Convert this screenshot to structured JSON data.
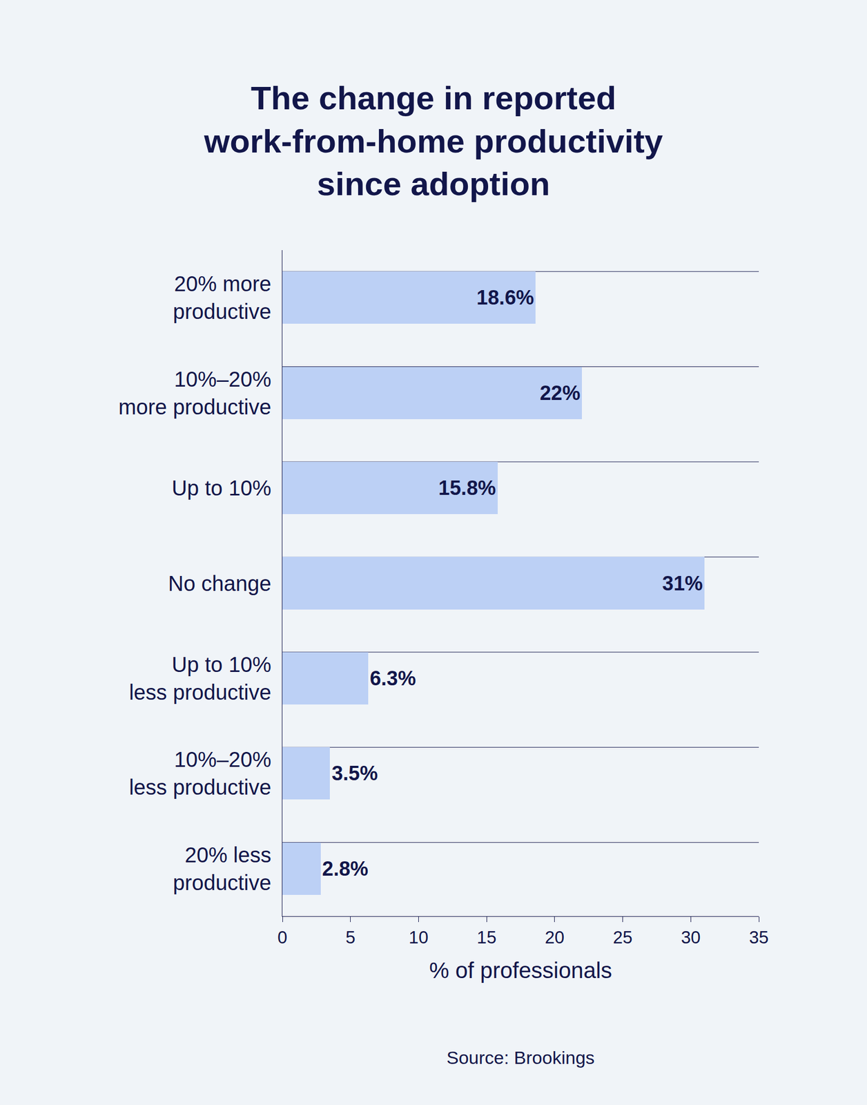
{
  "chart_data": {
    "type": "bar",
    "orientation": "horizontal",
    "title": "The change in reported\nwork-from-home productivity\nsince adoption",
    "x_label": "% of professionals",
    "annotation": "Source: Brookings",
    "categories": [
      "20% more\nproductive",
      "10%–20%\nmore productive",
      "Up to 10%",
      "No change",
      "Up to 10%\nless productive",
      "10%–20%\nless productive",
      "20% less\nproductive"
    ],
    "values": [
      18.6,
      22,
      15.8,
      31,
      6.3,
      3.5,
      2.8
    ],
    "value_labels": [
      "18.6%",
      "22%",
      "15.8%",
      "31%",
      "6.3%",
      "3.5%",
      "2.8%"
    ],
    "color": "#bcd0f5",
    "xlim": [
      0,
      35
    ],
    "xticks": [
      0,
      5,
      10,
      15,
      20,
      25,
      30,
      35
    ],
    "grid": true,
    "data_labels": true
  }
}
